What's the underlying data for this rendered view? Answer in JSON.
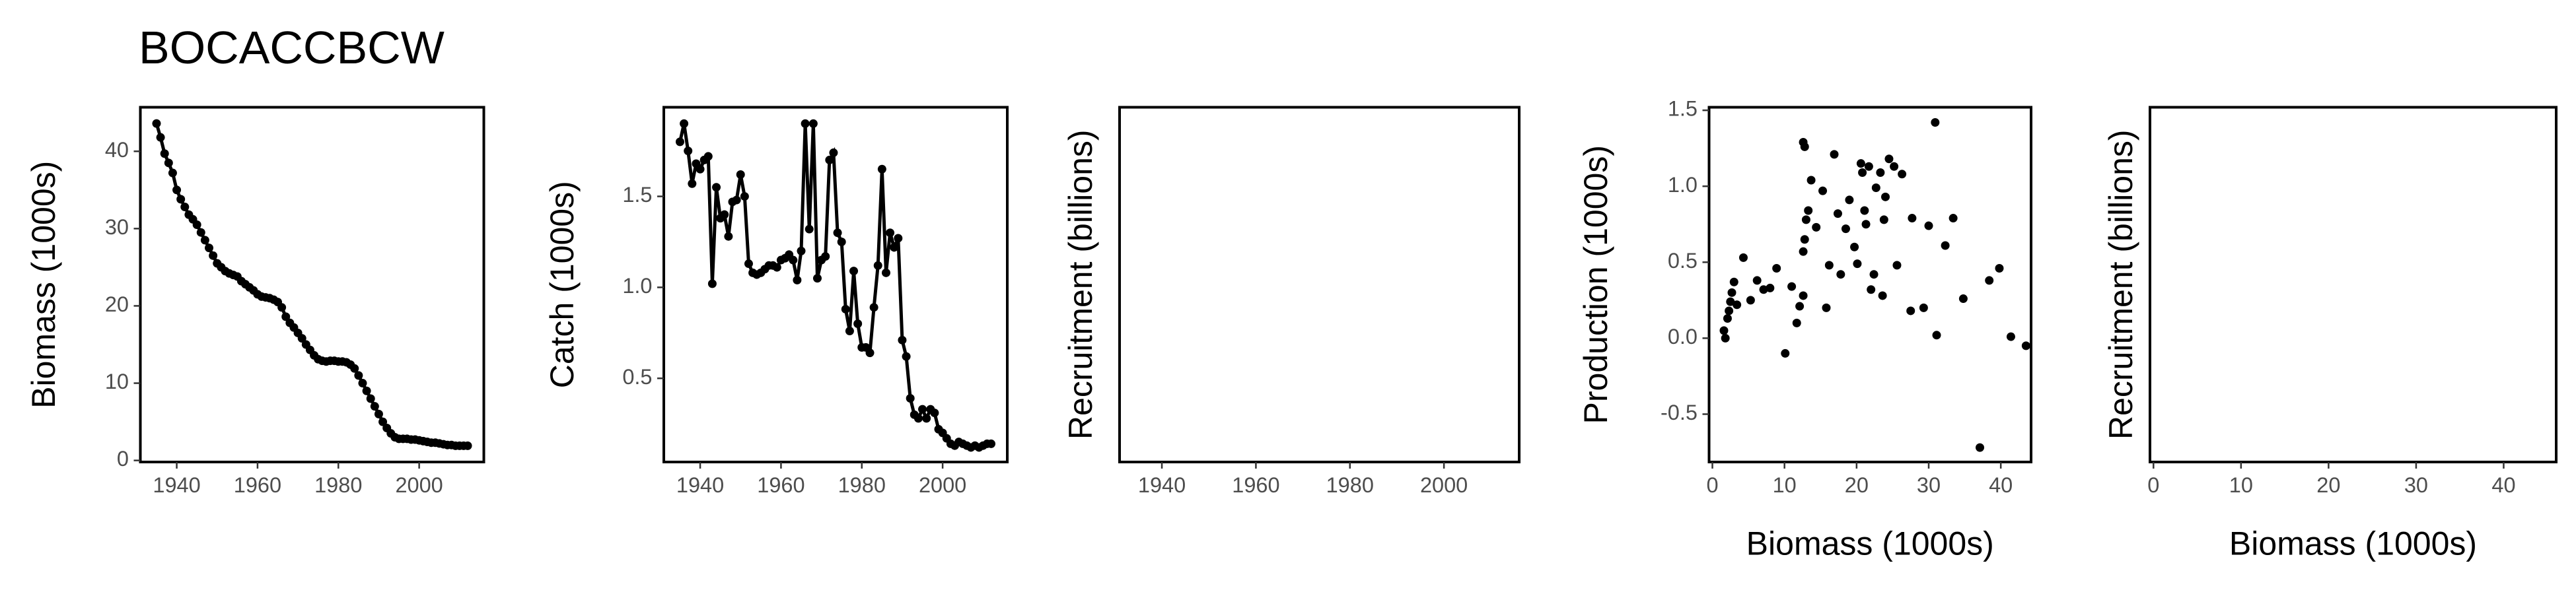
{
  "title": "BOCACCBCW",
  "chart_data": [
    {
      "type": "line",
      "ylabel": "Biomass (1000s)",
      "x": [
        1935,
        1936,
        1937,
        1938,
        1939,
        1940,
        1941,
        1942,
        1943,
        1944,
        1945,
        1946,
        1947,
        1948,
        1949,
        1950,
        1951,
        1952,
        1953,
        1954,
        1955,
        1956,
        1957,
        1958,
        1959,
        1960,
        1961,
        1962,
        1963,
        1964,
        1965,
        1966,
        1967,
        1968,
        1969,
        1970,
        1971,
        1972,
        1973,
        1974,
        1975,
        1976,
        1977,
        1978,
        1979,
        1980,
        1981,
        1982,
        1983,
        1984,
        1985,
        1986,
        1987,
        1988,
        1989,
        1990,
        1991,
        1992,
        1993,
        1994,
        1995,
        1996,
        1997,
        1998,
        1999,
        2000,
        2001,
        2002,
        2003,
        2004,
        2005,
        2006,
        2007,
        2008,
        2009,
        2010,
        2011,
        2012
      ],
      "values": [
        43.6,
        41.8,
        39.7,
        38.5,
        37.2,
        35.0,
        33.8,
        32.8,
        31.8,
        31.2,
        30.5,
        29.5,
        28.5,
        27.5,
        26.5,
        25.5,
        25.0,
        24.5,
        24.2,
        24.0,
        23.8,
        23.2,
        22.8,
        22.4,
        22.0,
        21.5,
        21.2,
        21.1,
        21.0,
        20.8,
        20.5,
        19.8,
        18.6,
        17.8,
        17.2,
        16.5,
        15.8,
        15.0,
        14.3,
        13.6,
        13.1,
        12.9,
        12.8,
        12.9,
        12.9,
        12.8,
        12.8,
        12.7,
        12.4,
        11.9,
        11.0,
        10.0,
        9.0,
        8.0,
        7.0,
        6.0,
        5.0,
        4.2,
        3.5,
        3.0,
        2.8,
        2.8,
        2.8,
        2.7,
        2.7,
        2.6,
        2.5,
        2.4,
        2.3,
        2.3,
        2.2,
        2.1,
        2.0,
        2.0,
        1.9,
        1.9,
        1.9,
        1.9
      ],
      "color": "#000000",
      "xlim": [
        1931,
        2016
      ],
      "xticks": [
        1940,
        1960,
        1980,
        2000
      ],
      "ylim": [
        -0.2,
        45.7
      ],
      "yticks": [
        0,
        10,
        20,
        30,
        40
      ]
    },
    {
      "type": "line",
      "ylabel": "Catch (1000s)",
      "x": [
        1935,
        1936,
        1937,
        1938,
        1939,
        1940,
        1941,
        1942,
        1943,
        1944,
        1945,
        1946,
        1947,
        1948,
        1949,
        1950,
        1951,
        1952,
        1953,
        1954,
        1955,
        1956,
        1957,
        1958,
        1959,
        1960,
        1961,
        1962,
        1963,
        1964,
        1965,
        1966,
        1967,
        1968,
        1969,
        1970,
        1971,
        1972,
        1973,
        1974,
        1975,
        1976,
        1977,
        1978,
        1979,
        1980,
        1981,
        1982,
        1983,
        1984,
        1985,
        1986,
        1987,
        1988,
        1989,
        1990,
        1991,
        1992,
        1993,
        1994,
        1995,
        1996,
        1997,
        1998,
        1999,
        2000,
        2001,
        2002,
        2003,
        2004,
        2005,
        2006,
        2007,
        2008,
        2009,
        2010,
        2011,
        2012
      ],
      "values": [
        1.8,
        1.9,
        1.75,
        1.57,
        1.68,
        1.65,
        1.7,
        1.72,
        1.02,
        1.55,
        1.38,
        1.4,
        1.28,
        1.47,
        1.48,
        1.62,
        1.5,
        1.13,
        1.08,
        1.07,
        1.08,
        1.1,
        1.12,
        1.12,
        1.11,
        1.15,
        1.16,
        1.18,
        1.15,
        1.04,
        1.2,
        1.9,
        1.32,
        1.9,
        1.05,
        1.15,
        1.17,
        1.7,
        1.74,
        1.3,
        1.25,
        0.88,
        0.76,
        1.09,
        0.8,
        0.67,
        0.67,
        0.64,
        0.89,
        1.12,
        1.65,
        1.08,
        1.3,
        1.22,
        1.27,
        0.71,
        0.62,
        0.39,
        0.3,
        0.28,
        0.33,
        0.28,
        0.33,
        0.31,
        0.22,
        0.2,
        0.17,
        0.14,
        0.13,
        0.15,
        0.14,
        0.13,
        0.12,
        0.13,
        0.12,
        0.13,
        0.14,
        0.14
      ],
      "color": "#000000",
      "xlim": [
        1931,
        2016
      ],
      "xticks": [
        1940,
        1960,
        1980,
        2000
      ],
      "ylim": [
        0.04,
        1.99
      ],
      "yticks": [
        0.5,
        {
          "value": 1,
          "label": "1.0"
        },
        1.5
      ]
    },
    {
      "type": "line",
      "ylabel": "Recruitment (billions)",
      "xlim": [
        1931,
        2016
      ],
      "xticks": [
        1940,
        1960,
        1980,
        2000
      ]
    },
    {
      "type": "scatter",
      "ylabel": "Production (1000s)",
      "xlabel": "Biomass (1000s)",
      "x": [
        1.8,
        1.6,
        2.1,
        2.3,
        2.5,
        2.7,
        3.0,
        3.4,
        4.3,
        5.3,
        6.2,
        7.1,
        8.0,
        8.9,
        10.1,
        11.0,
        11.7,
        12.1,
        12.6,
        12.6,
        12.8,
        12.6,
        12.8,
        13.0,
        13.3,
        13.7,
        14.4,
        15.3,
        15.8,
        16.2,
        16.9,
        17.4,
        17.8,
        18.5,
        19.0,
        19.7,
        20.1,
        20.6,
        20.8,
        21.1,
        21.3,
        21.7,
        22.0,
        22.4,
        22.7,
        23.3,
        23.6,
        23.8,
        24.0,
        24.5,
        25.2,
        25.6,
        26.3,
        27.5,
        27.7,
        29.3,
        30.0,
        30.9,
        31.1,
        32.3,
        33.4,
        34.8,
        37.1,
        38.4,
        39.8,
        41.4,
        43.5
      ],
      "values": [
        0.0,
        0.05,
        0.13,
        0.18,
        0.24,
        0.3,
        0.37,
        0.22,
        0.53,
        0.25,
        0.38,
        0.32,
        0.33,
        0.46,
        -0.1,
        0.34,
        0.1,
        0.21,
        0.28,
        0.57,
        0.65,
        1.29,
        1.26,
        0.78,
        0.84,
        1.04,
        0.73,
        0.97,
        0.2,
        0.48,
        1.21,
        0.82,
        0.42,
        0.72,
        0.91,
        0.6,
        0.49,
        1.15,
        1.09,
        0.84,
        0.75,
        1.13,
        0.32,
        0.42,
        0.99,
        1.09,
        0.28,
        0.78,
        0.93,
        1.18,
        1.13,
        0.48,
        1.08,
        0.18,
        0.79,
        0.2,
        0.74,
        1.42,
        0.02,
        0.61,
        0.79,
        0.26,
        -0.72,
        0.38,
        0.46,
        0.01,
        -0.05
      ],
      "color": "#000000",
      "xlim": [
        -0.46,
        44.2
      ],
      "xticks": [
        0,
        10,
        20,
        30,
        40
      ],
      "ylim": [
        -0.815,
        1.52
      ],
      "yticks": [
        -0.5,
        {
          "value": 0,
          "label": "0.0"
        },
        0.5,
        {
          "value": 1,
          "label": "1.0"
        },
        1.5
      ]
    },
    {
      "type": "scatter",
      "ylabel": "Recruitment (billions)",
      "xlabel": "Biomass (1000s)",
      "xlim": [
        -0.4,
        46
      ],
      "xticks": [
        0,
        10,
        20,
        30,
        40
      ]
    }
  ]
}
